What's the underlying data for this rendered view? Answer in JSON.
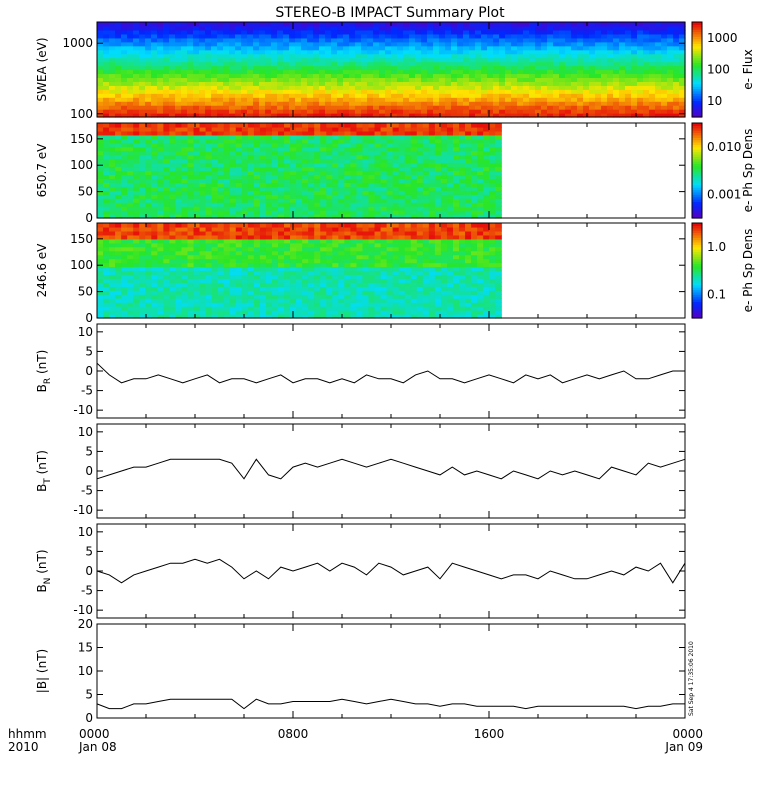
{
  "title": "STEREO-B IMPACT Summary Plot",
  "stamp": "Sat Sep  4 17:35:06 2010",
  "x_axis": {
    "row1_label": "hhmm",
    "row2_label": "2010",
    "ticks": [
      {
        "hour": 0,
        "time": "0000",
        "date": "Jan 08"
      },
      {
        "hour": 8,
        "time": "0800",
        "date": ""
      },
      {
        "hour": 16,
        "time": "1600",
        "date": ""
      },
      {
        "hour": 24,
        "time": "0000",
        "date": "Jan 09"
      }
    ],
    "range_hours": [
      0,
      24
    ]
  },
  "chart_data": [
    {
      "type": "heatmap",
      "id": "swea",
      "ylabel": "SWEA (eV)",
      "yscale": "log",
      "ylim": [
        90,
        2000
      ],
      "yticks": [
        "100",
        "1000"
      ],
      "colorbar_label": "e- Flux",
      "colorbar_scale": "log",
      "colorbar_ticks": [
        "10",
        "100",
        "1000"
      ],
      "data_until_hour": 24
    },
    {
      "type": "heatmap",
      "id": "pad650",
      "ylabel": "650.7 eV",
      "ylim": [
        0,
        180
      ],
      "yticks": [
        "0",
        "50",
        "100",
        "150"
      ],
      "colorbar_label": "e- Ph Sp Dens",
      "colorbar_scale": "log",
      "colorbar_ticks": [
        "0.001",
        "0.010"
      ],
      "data_until_hour": 16.5
    },
    {
      "type": "heatmap",
      "id": "pad246",
      "ylabel": "246.6 eV",
      "ylim": [
        0,
        180
      ],
      "yticks": [
        "0",
        "50",
        "100",
        "150"
      ],
      "colorbar_label": "e- Ph Sp Dens",
      "colorbar_scale": "log",
      "colorbar_ticks": [
        "0.1",
        "1.0"
      ],
      "data_until_hour": 16.5
    },
    {
      "type": "line",
      "id": "br",
      "ylabel_main": "B",
      "ylabel_sub": "R",
      "ylabel_unit": " (nT)",
      "ylim": [
        -12,
        12
      ],
      "yticks": [
        "-10",
        "-5",
        "0",
        "5",
        "10"
      ],
      "x": [
        0,
        0.5,
        1,
        1.5,
        2,
        2.5,
        3,
        3.5,
        4,
        4.5,
        5,
        5.5,
        6,
        6.5,
        7,
        7.5,
        8,
        8.5,
        9,
        9.5,
        10,
        10.5,
        11,
        11.5,
        12,
        12.5,
        13,
        13.5,
        14,
        14.5,
        15,
        15.5,
        16,
        16.5,
        17,
        17.5,
        18,
        18.5,
        19,
        19.5,
        20,
        20.5,
        21,
        21.5,
        22,
        22.5,
        23,
        23.5,
        24
      ],
      "y": [
        2,
        -1,
        -3,
        -2,
        -2,
        -1,
        -2,
        -3,
        -2,
        -1,
        -3,
        -2,
        -2,
        -3,
        -2,
        -1,
        -3,
        -2,
        -2,
        -3,
        -2,
        -3,
        -1,
        -2,
        -2,
        -3,
        -1,
        0,
        -2,
        -2,
        -3,
        -2,
        -1,
        -2,
        -3,
        -1,
        -2,
        -1,
        -3,
        -2,
        -1,
        -2,
        -1,
        0,
        -2,
        -2,
        -1,
        0,
        0
      ]
    },
    {
      "type": "line",
      "id": "bt",
      "ylabel_main": "B",
      "ylabel_sub": "T",
      "ylabel_unit": " (nT)",
      "ylim": [
        -12,
        12
      ],
      "yticks": [
        "-10",
        "-5",
        "0",
        "5",
        "10"
      ],
      "x": [
        0,
        0.5,
        1,
        1.5,
        2,
        2.5,
        3,
        3.5,
        4,
        4.5,
        5,
        5.5,
        6,
        6.5,
        7,
        7.5,
        8,
        8.5,
        9,
        9.5,
        10,
        10.5,
        11,
        11.5,
        12,
        12.5,
        13,
        13.5,
        14,
        14.5,
        15,
        15.5,
        16,
        16.5,
        17,
        17.5,
        18,
        18.5,
        19,
        19.5,
        20,
        20.5,
        21,
        21.5,
        22,
        22.5,
        23,
        23.5,
        24
      ],
      "y": [
        -2,
        -1,
        0,
        1,
        1,
        2,
        3,
        3,
        3,
        3,
        3,
        2,
        -2,
        3,
        -1,
        -2,
        1,
        2,
        1,
        2,
        3,
        2,
        1,
        2,
        3,
        2,
        1,
        0,
        -1,
        1,
        -1,
        0,
        -1,
        -2,
        0,
        -1,
        -2,
        0,
        -1,
        0,
        -1,
        -2,
        1,
        0,
        -1,
        2,
        1,
        2,
        3
      ]
    },
    {
      "type": "line",
      "id": "bn",
      "ylabel_main": "B",
      "ylabel_sub": "N",
      "ylabel_unit": " (nT)",
      "ylim": [
        -12,
        12
      ],
      "yticks": [
        "-10",
        "-5",
        "0",
        "5",
        "10"
      ],
      "x": [
        0,
        0.5,
        1,
        1.5,
        2,
        2.5,
        3,
        3.5,
        4,
        4.5,
        5,
        5.5,
        6,
        6.5,
        7,
        7.5,
        8,
        8.5,
        9,
        9.5,
        10,
        10.5,
        11,
        11.5,
        12,
        12.5,
        13,
        13.5,
        14,
        14.5,
        15,
        15.5,
        16,
        16.5,
        17,
        17.5,
        18,
        18.5,
        19,
        19.5,
        20,
        20.5,
        21,
        21.5,
        22,
        22.5,
        23,
        23.5,
        24
      ],
      "y": [
        0,
        -1,
        -3,
        -1,
        0,
        1,
        2,
        2,
        3,
        2,
        3,
        1,
        -2,
        0,
        -2,
        1,
        0,
        1,
        2,
        0,
        2,
        1,
        -1,
        2,
        1,
        -1,
        0,
        1,
        -2,
        2,
        1,
        0,
        -1,
        -2,
        -1,
        -1,
        -2,
        0,
        -1,
        -2,
        -2,
        -1,
        0,
        -1,
        1,
        0,
        2,
        -3,
        2
      ]
    },
    {
      "type": "line",
      "id": "bmag",
      "ylabel": "|B| (nT)",
      "ylim": [
        0,
        20
      ],
      "yticks": [
        "0",
        "5",
        "10",
        "15",
        "20"
      ],
      "x": [
        0,
        0.5,
        1,
        1.5,
        2,
        2.5,
        3,
        3.5,
        4,
        4.5,
        5,
        5.5,
        6,
        6.5,
        7,
        7.5,
        8,
        8.5,
        9,
        9.5,
        10,
        10.5,
        11,
        11.5,
        12,
        12.5,
        13,
        13.5,
        14,
        14.5,
        15,
        15.5,
        16,
        16.5,
        17,
        17.5,
        18,
        18.5,
        19,
        19.5,
        20,
        20.5,
        21,
        21.5,
        22,
        22.5,
        23,
        23.5,
        24
      ],
      "y": [
        3,
        2,
        2,
        3,
        3,
        3.5,
        4,
        4,
        4,
        4,
        4,
        4,
        2,
        4,
        3,
        3,
        3.5,
        3.5,
        3.5,
        3.5,
        4,
        3.5,
        3,
        3.5,
        4,
        3.5,
        3,
        3,
        2.5,
        3,
        3,
        2.5,
        2.5,
        2.5,
        2.5,
        2,
        2.5,
        2.5,
        2.5,
        2.5,
        2.5,
        2.5,
        2.5,
        2.5,
        2,
        2.5,
        2.5,
        3,
        3
      ]
    }
  ]
}
